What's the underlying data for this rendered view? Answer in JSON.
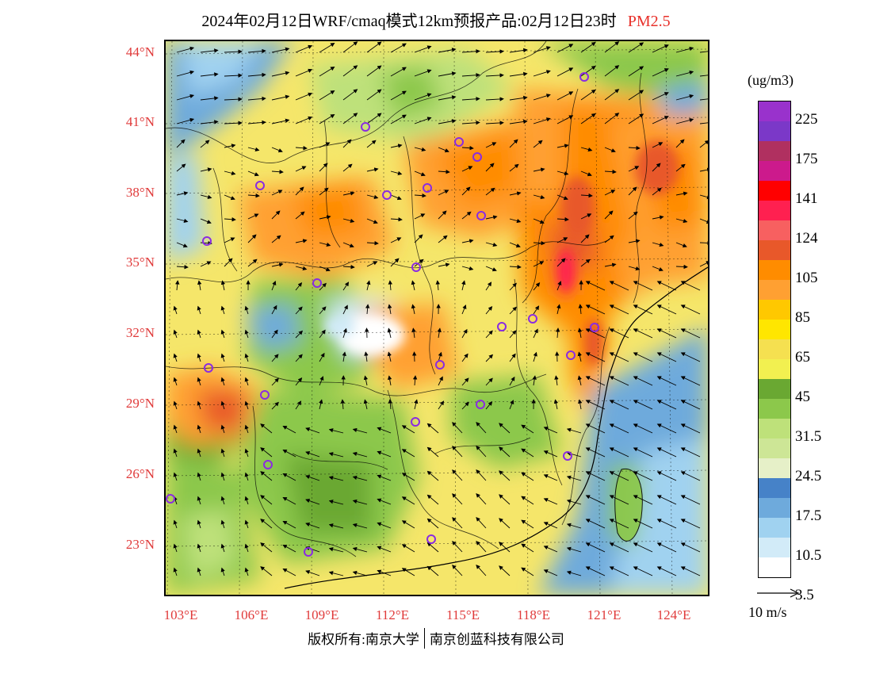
{
  "title": {
    "main": "2024年02月12日WRF/cmaq模式12km预报产品:02月12日23时",
    "pollutant": "PM2.5"
  },
  "colors": {
    "title_accent": "#e8302a",
    "axis_label": "#e03a3a",
    "city_marker": "#8a2be2"
  },
  "axes": {
    "lat_labels": [
      "44°N",
      "41°N",
      "38°N",
      "35°N",
      "32°N",
      "29°N",
      "26°N",
      "23°N"
    ],
    "lon_labels": [
      "103°E",
      "106°E",
      "109°E",
      "112°E",
      "115°E",
      "118°E",
      "121°E",
      "124°E"
    ]
  },
  "legend": {
    "unit": "(ug/m3)",
    "colors": [
      "#9932cc",
      "#7b38c8",
      "#b03060",
      "#cc1a8c",
      "#ff0000",
      "#ff2050",
      "#f76060",
      "#e8582a",
      "#ff8c00",
      "#ffa032",
      "#ffc800",
      "#ffe600",
      "#f5e050",
      "#f2f050",
      "#6aa832",
      "#8cc84b",
      "#bee17a",
      "#cde696",
      "#e6f0c8",
      "#4682c8",
      "#6eaadc",
      "#a0d2f0",
      "#d2ebf8",
      "#ffffff"
    ],
    "labels": [
      "225",
      "175",
      "141",
      "124",
      "105",
      "85",
      "65",
      "45",
      "31.5",
      "24.5",
      "17.5",
      "10.5",
      "3.5"
    ]
  },
  "wind_reference": {
    "label": "10 m/s"
  },
  "footer": {
    "copyright_owner": "版权所有:南京大学",
    "company": "南京创蓝科技有限公司"
  }
}
